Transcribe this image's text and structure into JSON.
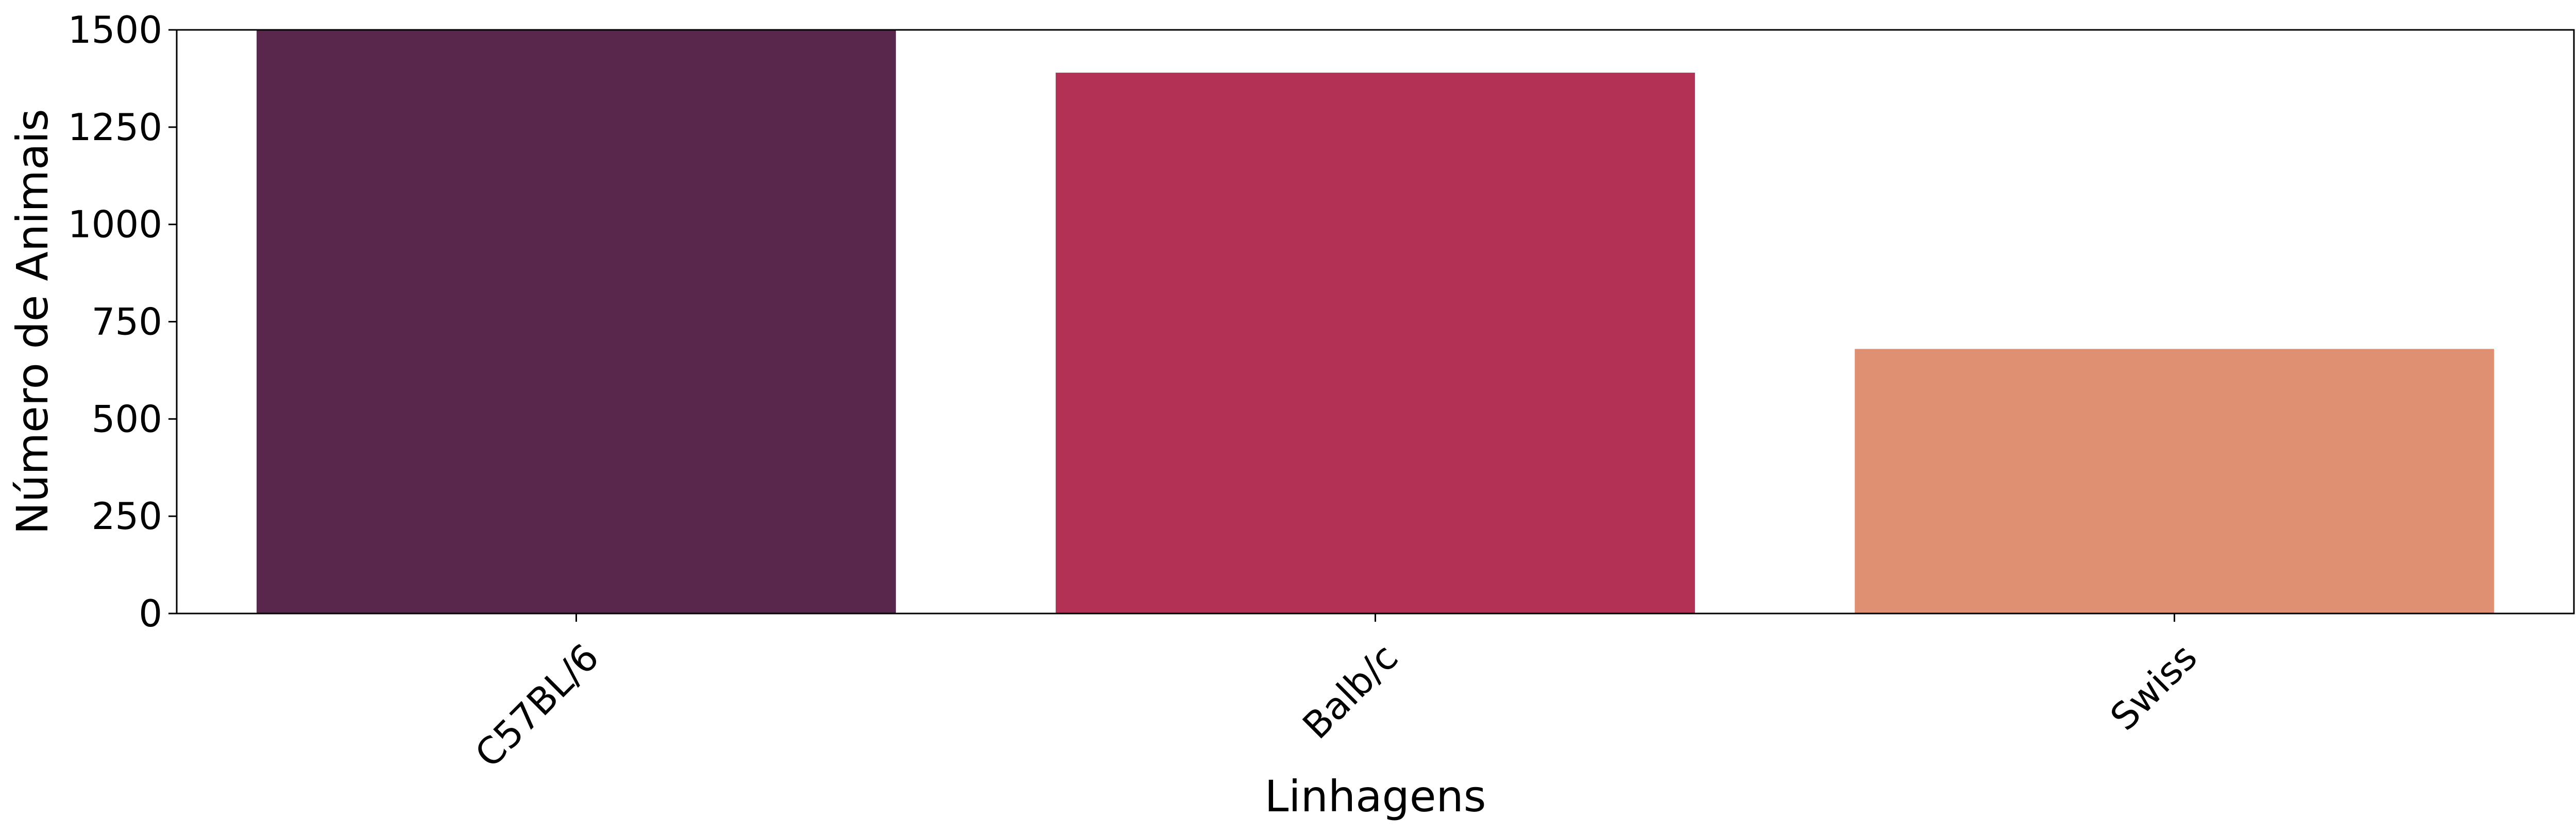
{
  "chart_data": {
    "type": "bar",
    "xlabel": "Linhagens",
    "ylabel": "Número de Animais",
    "categories": [
      "C57BL/6",
      "Balb/c",
      "Swiss"
    ],
    "values": [
      1500,
      1390,
      680
    ],
    "colors": [
      "#5a274c",
      "#b43156",
      "#e09072"
    ],
    "ylim": [
      0,
      1500
    ],
    "yticks": [
      0,
      250,
      500,
      750,
      1000,
      1250,
      1500
    ],
    "ytick_labels": [
      "0",
      "250",
      "500",
      "750",
      "1000",
      "1250",
      "1500"
    ],
    "xtick_rotation": "45 degrees",
    "grid": false,
    "legend": "none"
  }
}
